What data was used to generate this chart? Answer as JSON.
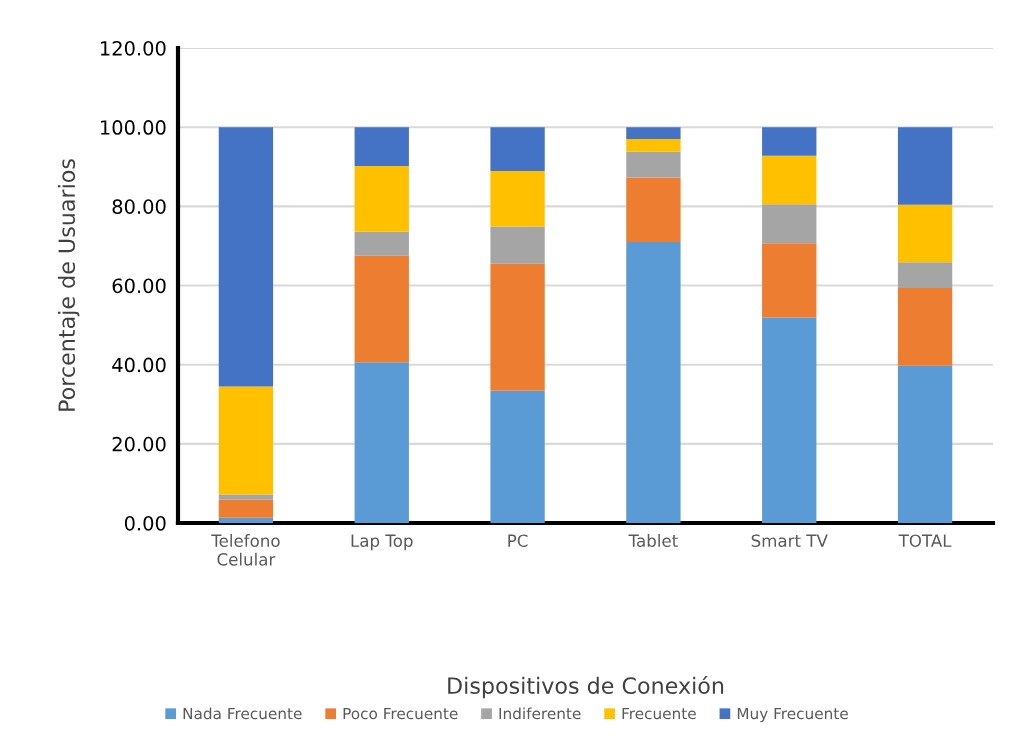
{
  "chart_data": {
    "type": "bar",
    "stacked": true,
    "xlabel": "Dispositivos de Conexión",
    "ylabel": "Porcentaje de Usuarios",
    "categories": [
      "Telefono\nCelular",
      "Lap Top",
      "PC",
      "Tablet",
      "Smart TV",
      "TOTAL"
    ],
    "series": [
      {
        "name": "Nada Frecuente",
        "color": "#5b9bd5",
        "values": [
          1.3,
          40.6,
          33.4,
          71.0,
          51.9,
          39.7
        ]
      },
      {
        "name": "Poco Frecuente",
        "color": "#ed7d31",
        "values": [
          4.6,
          26.9,
          32.1,
          16.3,
          18.8,
          19.7
        ]
      },
      {
        "name": "Indiferente",
        "color": "#a5a5a5",
        "values": [
          1.3,
          6.1,
          9.4,
          6.5,
          9.8,
          6.5
        ]
      },
      {
        "name": "Frecuente",
        "color": "#ffc000",
        "values": [
          27.3,
          16.6,
          14.0,
          3.2,
          12.3,
          14.5
        ]
      },
      {
        "name": "Muy Frecuente",
        "color": "#4472c4",
        "values": [
          65.5,
          9.8,
          11.1,
          3.0,
          7.2,
          19.6
        ]
      }
    ],
    "ylim": [
      0,
      120
    ],
    "yticks": [
      {
        "value": 0,
        "label": "0.00"
      },
      {
        "value": 20,
        "label": "20.00"
      },
      {
        "value": 40,
        "label": "40.00"
      },
      {
        "value": 60,
        "label": "60.00"
      },
      {
        "value": 80,
        "label": "80.00"
      },
      {
        "value": 100,
        "label": "100.00"
      },
      {
        "value": 120,
        "label": "120.00"
      }
    ],
    "grid": "y",
    "legend": "bottom"
  }
}
